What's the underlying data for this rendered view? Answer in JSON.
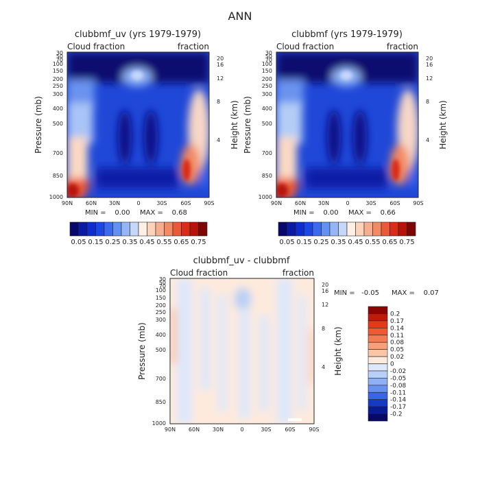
{
  "chart_data": {
    "type": "heatmap",
    "title": "ANN",
    "panels": [
      {
        "id": "top_left",
        "title": "clubbmf_uv (yrs 1979-1979)",
        "left_label": "Cloud fraction",
        "right_label": "fraction",
        "ylabel": "Pressure (mb)",
        "y2label": "Height (km)",
        "min_label": "MIN =    0.00",
        "max_label": "MAX =    0.68",
        "pressure_ticks": [
          "30",
          "50",
          "70",
          "100",
          "150",
          "200",
          "250",
          "300",
          "400",
          "500",
          "700",
          "850",
          "1000"
        ],
        "height_ticks": [
          "20",
          "16",
          "12",
          "8",
          "4"
        ],
        "lat_ticks": [
          "90N",
          "60N",
          "30N",
          "0",
          "30S",
          "60S",
          "90S"
        ]
      },
      {
        "id": "top_right",
        "title": "clubbmf (yrs 1979-1979)",
        "left_label": "Cloud fraction",
        "right_label": "fraction",
        "ylabel": "Pressure (mb)",
        "y2label": "Height (km)",
        "min_label": "MIN =    0.00",
        "max_label": "MAX =    0.66",
        "pressure_ticks": [
          "30",
          "50",
          "70",
          "100",
          "150",
          "200",
          "250",
          "300",
          "400",
          "500",
          "700",
          "850",
          "1000"
        ],
        "height_ticks": [
          "20",
          "16",
          "12",
          "8",
          "4"
        ],
        "lat_ticks": [
          "90N",
          "60N",
          "30N",
          "0",
          "30S",
          "60S",
          "90S"
        ]
      },
      {
        "id": "bottom",
        "title": "clubbmf_uv - clubbmf",
        "left_label": "Cloud fraction",
        "right_label": "fraction",
        "ylabel": "Pressure (mb)",
        "y2label": "Height (km)",
        "min_label": "MIN =   -0.05",
        "max_label": "MAX =    0.07",
        "pressure_ticks": [
          "30",
          "50",
          "70",
          "100",
          "150",
          "200",
          "250",
          "300",
          "400",
          "500",
          "700",
          "850",
          "1000"
        ],
        "height_ticks": [
          "20",
          "16",
          "12",
          "8",
          "4"
        ],
        "lat_ticks": [
          "90N",
          "60N",
          "30N",
          "0",
          "30S",
          "60S",
          "90S"
        ]
      }
    ],
    "colorbar_top": {
      "labels": [
        "0.05",
        "0.15",
        "0.25",
        "0.35",
        "0.45",
        "0.55",
        "0.65",
        "0.75"
      ],
      "colors": [
        "#08076c",
        "#0b1aa6",
        "#0d2dd0",
        "#1c47e4",
        "#3b6aee",
        "#6390f2",
        "#94b6f6",
        "#c5d7fa",
        "#fff0e6",
        "#fcd2bb",
        "#f7ae8e",
        "#f28a64",
        "#ea5a38",
        "#da2c16",
        "#b8120a",
        "#7f0606"
      ]
    },
    "colorbar_diff": {
      "labels": [
        "0.2",
        "0.17",
        "0.14",
        "0.11",
        "0.08",
        "0.05",
        "0.02",
        "0",
        "-0.02",
        "-0.05",
        "-0.08",
        "-0.11",
        "-0.14",
        "-0.17",
        "-0.2"
      ],
      "colors": [
        "#8b0505",
        "#c01a0a",
        "#e23a1a",
        "#f05a32",
        "#f47c52",
        "#f8a07a",
        "#fbc6a8",
        "#feeadd",
        "#dde8fb",
        "#b8cff7",
        "#8fb0f2",
        "#6890ee",
        "#3a65e4",
        "#1639c6",
        "#0a1b96",
        "#060a64"
      ]
    }
  }
}
